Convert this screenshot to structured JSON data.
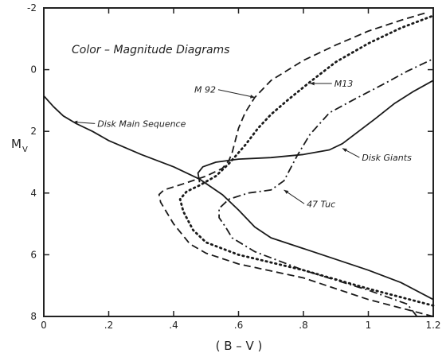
{
  "chart_data": {
    "type": "line",
    "title": "Color – Magnitude Diagrams",
    "xlabel": "( B – V )",
    "ylabel": "M",
    "ylabel_sub": "V",
    "xlim": [
      0,
      1.2
    ],
    "ylim": [
      8,
      -2
    ],
    "y_inverted": true,
    "grid": false,
    "x_ticks": [
      0,
      0.2,
      0.4,
      0.6,
      0.8,
      1.0,
      1.2
    ],
    "x_tick_labels": [
      "0",
      ".2",
      ".4",
      ".6",
      ".8",
      "1",
      "1.2"
    ],
    "y_ticks": [
      -2,
      0,
      2,
      4,
      6,
      8
    ],
    "y_tick_labels": [
      "-2",
      "0",
      "2",
      "4",
      "6",
      "8"
    ],
    "series": [
      {
        "name": "Disk Main Sequence",
        "line_style": "solid",
        "points": [
          [
            0.0,
            0.85
          ],
          [
            0.03,
            1.2
          ],
          [
            0.06,
            1.5
          ],
          [
            0.1,
            1.75
          ],
          [
            0.15,
            2.0
          ],
          [
            0.2,
            2.3
          ],
          [
            0.3,
            2.75
          ],
          [
            0.4,
            3.15
          ],
          [
            0.48,
            3.55
          ],
          [
            0.55,
            4.05
          ],
          [
            0.6,
            4.55
          ],
          [
            0.65,
            5.1
          ],
          [
            0.7,
            5.45
          ],
          [
            0.8,
            5.8
          ],
          [
            0.9,
            6.15
          ],
          [
            1.0,
            6.5
          ],
          [
            1.1,
            6.9
          ],
          [
            1.2,
            7.45
          ]
        ]
      },
      {
        "name": "Disk Giants",
        "line_style": "solid",
        "points": [
          [
            0.48,
            3.65
          ],
          [
            0.475,
            3.35
          ],
          [
            0.49,
            3.15
          ],
          [
            0.53,
            3.0
          ],
          [
            0.6,
            2.9
          ],
          [
            0.7,
            2.85
          ],
          [
            0.8,
            2.75
          ],
          [
            0.88,
            2.6
          ],
          [
            0.92,
            2.4
          ],
          [
            0.97,
            2.0
          ],
          [
            1.02,
            1.6
          ],
          [
            1.08,
            1.1
          ],
          [
            1.14,
            0.7
          ],
          [
            1.2,
            0.35
          ]
        ]
      },
      {
        "name": "M92",
        "line_style": "dashed",
        "points": [
          [
            1.2,
            8.0
          ],
          [
            1.0,
            7.45
          ],
          [
            0.8,
            6.75
          ],
          [
            0.6,
            6.3
          ],
          [
            0.5,
            5.95
          ],
          [
            0.45,
            5.65
          ],
          [
            0.4,
            5.0
          ],
          [
            0.36,
            4.3
          ],
          [
            0.355,
            4.05
          ],
          [
            0.37,
            3.9
          ],
          [
            0.43,
            3.7
          ],
          [
            0.5,
            3.45
          ],
          [
            0.55,
            3.2
          ],
          [
            0.57,
            2.95
          ],
          [
            0.58,
            2.7
          ],
          [
            0.6,
            1.9
          ],
          [
            0.62,
            1.4
          ],
          [
            0.65,
            0.9
          ],
          [
            0.7,
            0.35
          ],
          [
            0.8,
            -0.3
          ],
          [
            0.9,
            -0.8
          ],
          [
            1.0,
            -1.25
          ],
          [
            1.1,
            -1.6
          ],
          [
            1.18,
            -1.85
          ]
        ]
      },
      {
        "name": "M13",
        "line_style": "dotted",
        "points": [
          [
            1.2,
            7.65
          ],
          [
            1.0,
            7.1
          ],
          [
            0.8,
            6.5
          ],
          [
            0.6,
            6.0
          ],
          [
            0.5,
            5.6
          ],
          [
            0.46,
            5.2
          ],
          [
            0.43,
            4.6
          ],
          [
            0.42,
            4.2
          ],
          [
            0.44,
            3.95
          ],
          [
            0.48,
            3.75
          ],
          [
            0.53,
            3.45
          ],
          [
            0.57,
            3.05
          ],
          [
            0.62,
            2.45
          ],
          [
            0.66,
            1.9
          ],
          [
            0.7,
            1.45
          ],
          [
            0.75,
            1.0
          ],
          [
            0.82,
            0.4
          ],
          [
            0.9,
            -0.25
          ],
          [
            1.0,
            -0.85
          ],
          [
            1.1,
            -1.35
          ],
          [
            1.2,
            -1.75
          ]
        ]
      },
      {
        "name": "47Tuc",
        "line_style": "dashdot",
        "points": [
          [
            1.15,
            8.0
          ],
          [
            1.12,
            7.6
          ],
          [
            1.0,
            7.15
          ],
          [
            0.8,
            6.5
          ],
          [
            0.65,
            5.9
          ],
          [
            0.58,
            5.45
          ],
          [
            0.56,
            5.1
          ],
          [
            0.54,
            4.8
          ],
          [
            0.54,
            4.5
          ],
          [
            0.57,
            4.2
          ],
          [
            0.63,
            4.0
          ],
          [
            0.7,
            3.9
          ],
          [
            0.74,
            3.6
          ],
          [
            0.76,
            3.2
          ],
          [
            0.78,
            2.8
          ],
          [
            0.82,
            2.1
          ],
          [
            0.88,
            1.4
          ],
          [
            0.95,
            1.0
          ],
          [
            1.05,
            0.45
          ],
          [
            1.12,
            0.05
          ],
          [
            1.2,
            -0.35
          ]
        ]
      }
    ],
    "annotations": [
      {
        "text": "Disk Main Sequence",
        "series": "Disk Main Sequence",
        "x": 0.09,
        "y": 1.7
      },
      {
        "text": "Disk Giants",
        "series": "Disk Giants",
        "x": 0.92,
        "y": 2.55
      },
      {
        "text": "M 92",
        "series": "M92",
        "x": 0.65,
        "y": 0.9
      },
      {
        "text": "M13",
        "series": "M13",
        "x": 0.82,
        "y": 0.45
      },
      {
        "text": "47 Tuc",
        "series": "47Tuc",
        "x": 0.74,
        "y": 3.9
      }
    ]
  }
}
